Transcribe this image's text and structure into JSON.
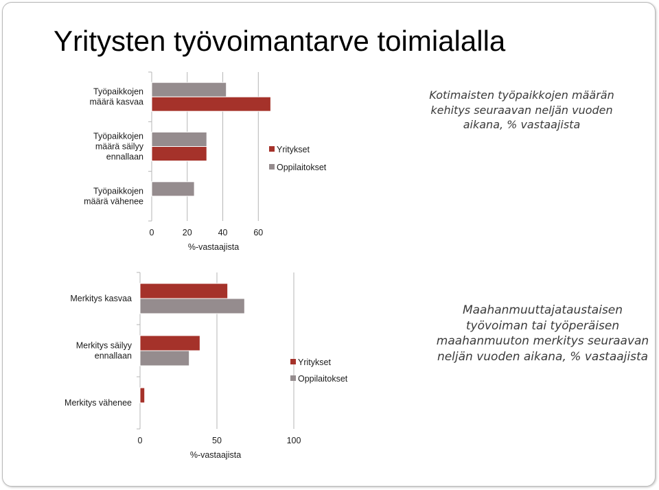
{
  "title": "Yritysten työvoimantarve toimialalla",
  "colors": {
    "yritykset": "#a5322a",
    "oppilaitokset": "#958c8e",
    "axis": "#b5b5b5"
  },
  "chart_data": [
    {
      "type": "bar",
      "orientation": "horizontal",
      "title": "Kotimaisten työpaikkojen määrän kehitys seuraavan neljän vuoden aikana, % vastaajista",
      "categories": [
        "Työpaikkojen määrä kasvaa",
        "Työpaikkojen määrä säilyy ennallaan",
        "Työpaikkojen määrä vähenee"
      ],
      "category_lines": [
        [
          "Työpaikkojen",
          "määrä kasvaa"
        ],
        [
          "Työpaikkojen",
          "määrä säilyy",
          "ennallaan"
        ],
        [
          "Työpaikkojen",
          "määrä vähenee"
        ]
      ],
      "series": [
        {
          "name": "Yritykset",
          "values": [
            67,
            31,
            0
          ]
        },
        {
          "name": "Oppilaitokset",
          "values": [
            42,
            31,
            24
          ]
        }
      ],
      "bar_order": [
        "Oppilaitokset",
        "Yritykset"
      ],
      "xlabel": "%-vastaajista",
      "xticks": [
        0,
        20,
        40,
        60
      ],
      "xlim": [
        0,
        68
      ],
      "legend": "right"
    },
    {
      "type": "bar",
      "orientation": "horizontal",
      "title": "Maahanmuuttajataustaisen työvoiman tai työperäisen maahanmuuton merkitys seuraavan neljän vuoden aikana, % vastaajista",
      "categories": [
        "Merkitys kasvaa",
        "Merkitys säilyy ennallaan",
        "Merkitys vähenee"
      ],
      "category_lines": [
        [
          "Merkitys kasvaa"
        ],
        [
          "Merkitys säilyy",
          "ennallaan"
        ],
        [
          "Merkitys vähenee"
        ]
      ],
      "series": [
        {
          "name": "Yritykset",
          "values": [
            57,
            39,
            3
          ]
        },
        {
          "name": "Oppilaitokset",
          "values": [
            68,
            32,
            0
          ]
        }
      ],
      "bar_order": [
        "Yritykset",
        "Oppilaitokset"
      ],
      "xlabel": "%-vastaajista",
      "xticks": [
        0,
        50,
        100
      ],
      "xlim": [
        0,
        100
      ],
      "legend": "right"
    }
  ]
}
